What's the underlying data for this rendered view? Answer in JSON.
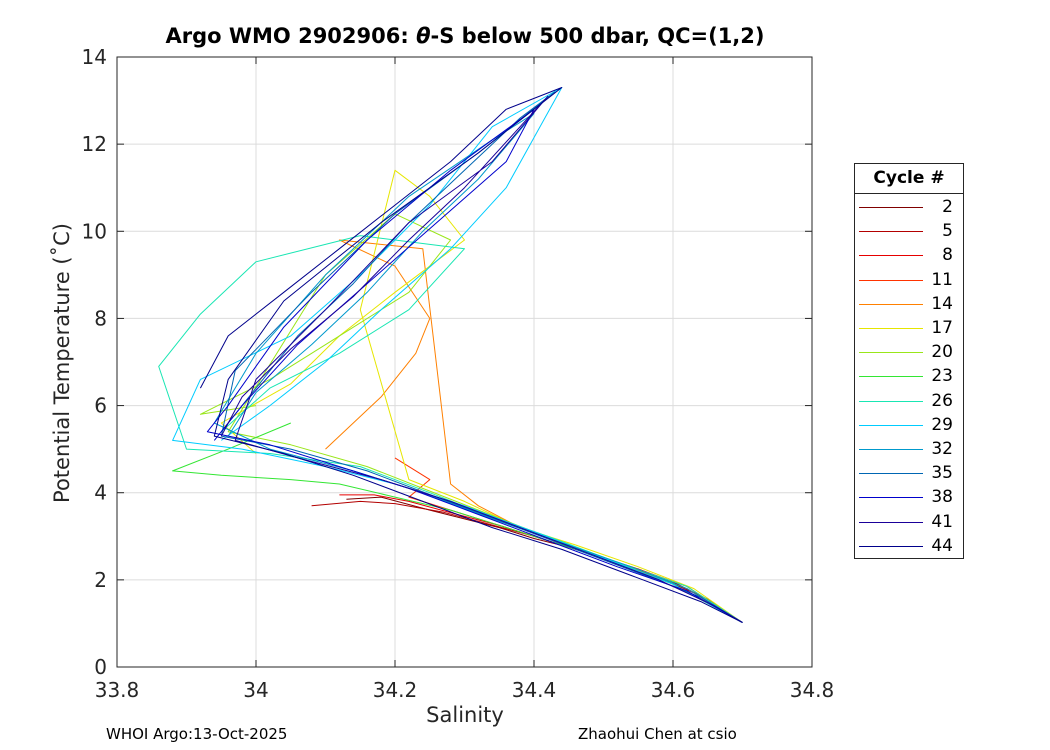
{
  "title_prefix": "Argo WMO 2902906: ",
  "title_theta": "θ",
  "title_suffix": "-S below 500 dbar,  QC=(1,2)",
  "footer_left": "WHOI Argo:13-Oct-2025",
  "footer_right": "Zhaohui Chen at csio",
  "legend": {
    "title": "Cycle #",
    "items": [
      {
        "label": "2",
        "color": "#800000"
      },
      {
        "label": "5",
        "color": "#b30000"
      },
      {
        "label": "8",
        "color": "#e60000"
      },
      {
        "label": "11",
        "color": "#ff3300"
      },
      {
        "label": "14",
        "color": "#ff8000"
      },
      {
        "label": "17",
        "color": "#e6e600"
      },
      {
        "label": "20",
        "color": "#99e619"
      },
      {
        "label": "23",
        "color": "#33e633"
      },
      {
        "label": "26",
        "color": "#19e6b3"
      },
      {
        "label": "29",
        "color": "#00ccff"
      },
      {
        "label": "32",
        "color": "#0099cc"
      },
      {
        "label": "35",
        "color": "#0066b3"
      },
      {
        "label": "38",
        "color": "#0000cc"
      },
      {
        "label": "41",
        "color": "#1a0099"
      },
      {
        "label": "44",
        "color": "#00008b"
      }
    ]
  },
  "chart_data": {
    "type": "line",
    "title": "Argo WMO 2902906: θ-S below 500 dbar,  QC=(1,2)",
    "xlabel": "Salinity",
    "ylabel": "Potential Temperature (˚C)",
    "xlim": [
      33.8,
      34.8
    ],
    "ylim": [
      0,
      14
    ],
    "xticks": [
      33.8,
      34,
      34.2,
      34.4,
      34.6,
      34.8
    ],
    "yticks": [
      0,
      2,
      4,
      6,
      8,
      10,
      12,
      14
    ],
    "xtick_labels": [
      "33.8",
      "34",
      "34.2",
      "34.4",
      "34.6",
      "34.8"
    ],
    "ytick_labels": [
      "0",
      "2",
      "4",
      "6",
      "8",
      "10",
      "12",
      "14"
    ],
    "grid": true,
    "legend_location": "outside-right",
    "series": [
      {
        "name": "2",
        "color": "#800000",
        "s": [
          34.13,
          34.18,
          34.25,
          34.3,
          34.35,
          34.4,
          34.45,
          34.5,
          34.55,
          34.6,
          34.65,
          34.7
        ],
        "t": [
          3.85,
          3.9,
          3.6,
          3.4,
          3.2,
          2.95,
          2.75,
          2.5,
          2.25,
          1.95,
          1.55,
          1.02
        ]
      },
      {
        "name": "5",
        "color": "#b30000",
        "s": [
          34.08,
          34.15,
          34.2,
          34.27,
          34.33,
          34.4,
          34.46,
          34.52,
          34.58,
          34.63,
          34.7
        ],
        "t": [
          3.7,
          3.8,
          3.75,
          3.55,
          3.3,
          3.0,
          2.7,
          2.4,
          2.05,
          1.7,
          1.02
        ]
      },
      {
        "name": "8",
        "color": "#e60000",
        "s": [
          34.12,
          34.17,
          34.22,
          34.29,
          34.35,
          34.42,
          34.48,
          34.55,
          34.62,
          34.7
        ],
        "t": [
          3.95,
          3.95,
          3.8,
          3.5,
          3.25,
          2.9,
          2.6,
          2.2,
          1.8,
          1.02
        ]
      },
      {
        "name": "11",
        "color": "#ff3300",
        "s": [
          34.2,
          34.25,
          34.22,
          34.28,
          34.34,
          34.4,
          34.47,
          34.54,
          34.62,
          34.7
        ],
        "t": [
          4.8,
          4.3,
          3.9,
          3.6,
          3.3,
          3.0,
          2.65,
          2.3,
          1.85,
          1.02
        ]
      },
      {
        "name": "14",
        "color": "#ff8000",
        "s": [
          34.1,
          34.18,
          34.23,
          34.25,
          34.2,
          34.12,
          34.24,
          34.28,
          34.32,
          34.38,
          34.45,
          34.52,
          34.6,
          34.7
        ],
        "t": [
          5.0,
          6.2,
          7.2,
          8.0,
          9.2,
          9.8,
          9.6,
          4.2,
          3.7,
          3.2,
          2.8,
          2.4,
          1.9,
          1.02
        ]
      },
      {
        "name": "17",
        "color": "#e6e600",
        "s": [
          34.0,
          33.95,
          34.05,
          34.12,
          34.2,
          34.3,
          34.25,
          34.2,
          34.15,
          34.22,
          34.3,
          34.38,
          34.46,
          34.55,
          34.63,
          34.7
        ],
        "t": [
          4.9,
          5.6,
          6.5,
          7.6,
          8.6,
          9.8,
          10.8,
          11.4,
          8.2,
          4.3,
          3.8,
          3.2,
          2.8,
          2.3,
          1.8,
          1.02
        ]
      },
      {
        "name": "20",
        "color": "#99e619",
        "s": [
          34.0,
          33.92,
          34.02,
          34.12,
          34.22,
          34.28,
          34.2,
          34.1,
          33.96,
          34.05,
          34.16,
          34.24,
          34.32,
          34.4,
          34.5,
          34.6,
          34.7
        ],
        "t": [
          6.0,
          5.8,
          6.6,
          7.6,
          8.6,
          9.8,
          10.4,
          9.0,
          5.4,
          5.1,
          4.6,
          4.1,
          3.6,
          3.1,
          2.5,
          1.9,
          1.02
        ]
      },
      {
        "name": "23",
        "color": "#33e633",
        "s": [
          34.05,
          33.96,
          33.88,
          33.95,
          34.05,
          34.12,
          34.2,
          34.28,
          34.34,
          34.4,
          34.5,
          34.6,
          34.7
        ],
        "t": [
          5.6,
          5.0,
          4.5,
          4.4,
          4.3,
          4.2,
          3.9,
          3.6,
          3.3,
          3.0,
          2.5,
          1.9,
          1.02
        ]
      },
      {
        "name": "26",
        "color": "#19e6b3",
        "s": [
          33.95,
          34.02,
          34.12,
          34.22,
          34.3,
          34.15,
          34.0,
          33.92,
          33.86,
          33.9,
          34.02,
          34.15,
          34.25,
          34.33,
          34.42,
          34.52,
          34.62,
          34.7
        ],
        "t": [
          5.4,
          6.4,
          7.2,
          8.2,
          9.6,
          9.9,
          9.3,
          8.1,
          6.9,
          5.0,
          4.9,
          4.6,
          4.0,
          3.5,
          3.0,
          2.4,
          1.85,
          1.02
        ]
      },
      {
        "name": "29",
        "color": "#00ccff",
        "s": [
          33.95,
          34.02,
          34.1,
          34.18,
          34.28,
          34.36,
          34.44,
          34.34,
          34.25,
          34.15,
          34.05,
          33.92,
          33.88,
          33.98,
          34.1,
          34.2,
          34.3,
          34.4,
          34.5,
          34.6,
          34.7
        ],
        "t": [
          5.2,
          6.0,
          7.0,
          8.2,
          9.6,
          11.0,
          13.3,
          12.4,
          10.6,
          9.0,
          7.6,
          6.6,
          5.2,
          5.0,
          4.6,
          4.2,
          3.7,
          3.1,
          2.5,
          1.9,
          1.02
        ]
      },
      {
        "name": "32",
        "color": "#0099cc",
        "s": [
          33.96,
          34.0,
          34.08,
          34.16,
          34.24,
          34.32,
          34.4,
          34.34,
          34.22,
          34.1,
          34.0,
          33.94,
          34.02,
          34.14,
          34.24,
          34.34,
          34.44,
          34.54,
          34.62,
          34.7
        ],
        "t": [
          5.3,
          6.3,
          7.4,
          8.6,
          10.0,
          11.2,
          12.7,
          12.1,
          10.8,
          9.0,
          7.2,
          5.6,
          5.0,
          4.5,
          4.0,
          3.4,
          2.85,
          2.3,
          1.8,
          1.02
        ]
      },
      {
        "name": "35",
        "color": "#0066b3",
        "s": [
          33.95,
          34.0,
          34.06,
          34.14,
          34.22,
          34.3,
          34.38,
          34.43,
          34.32,
          34.2,
          34.08,
          33.97,
          33.95,
          34.05,
          34.16,
          34.26,
          34.36,
          34.46,
          34.56,
          34.64,
          34.7
        ],
        "t": [
          5.4,
          6.4,
          7.6,
          8.8,
          10.2,
          11.4,
          12.6,
          13.2,
          11.8,
          10.4,
          8.6,
          6.8,
          5.3,
          5.0,
          4.5,
          3.9,
          3.3,
          2.7,
          2.1,
          1.6,
          1.02
        ]
      },
      {
        "name": "38",
        "color": "#0000cc",
        "s": [
          33.94,
          33.98,
          34.06,
          34.16,
          34.26,
          34.36,
          34.4,
          34.28,
          34.16,
          34.04,
          33.96,
          33.93,
          34.02,
          34.12,
          34.22,
          34.32,
          34.42,
          34.52,
          34.62,
          34.7
        ],
        "t": [
          5.2,
          6.0,
          7.4,
          8.8,
          10.2,
          11.6,
          12.8,
          11.4,
          9.8,
          7.8,
          6.0,
          5.4,
          5.1,
          4.6,
          4.1,
          3.5,
          2.9,
          2.3,
          1.75,
          1.02
        ]
      },
      {
        "name": "41",
        "color": "#1a0099",
        "s": [
          33.95,
          33.98,
          34.05,
          34.14,
          34.22,
          34.3,
          34.38,
          34.42,
          34.34,
          34.22,
          34.1,
          34.0,
          33.97,
          34.06,
          34.18,
          34.28,
          34.38,
          34.48,
          34.58,
          34.66,
          34.7
        ],
        "t": [
          5.3,
          6.2,
          7.3,
          8.5,
          9.8,
          11.0,
          12.4,
          13.1,
          11.6,
          10.2,
          8.2,
          6.6,
          5.2,
          4.8,
          4.3,
          3.8,
          3.2,
          2.6,
          2.0,
          1.4,
          1.02
        ]
      },
      {
        "name": "44",
        "color": "#00008b",
        "s": [
          33.92,
          33.96,
          34.04,
          34.12,
          34.2,
          34.28,
          34.36,
          34.44,
          34.32,
          34.18,
          34.04,
          33.96,
          33.94,
          34.04,
          34.14,
          34.24,
          34.34,
          34.44,
          34.54,
          34.64,
          34.7
        ],
        "t": [
          6.4,
          7.6,
          8.6,
          9.6,
          10.6,
          11.6,
          12.8,
          13.3,
          11.8,
          10.2,
          8.4,
          6.6,
          5.3,
          4.9,
          4.4,
          3.8,
          3.2,
          2.7,
          2.1,
          1.5,
          1.02
        ]
      }
    ]
  }
}
